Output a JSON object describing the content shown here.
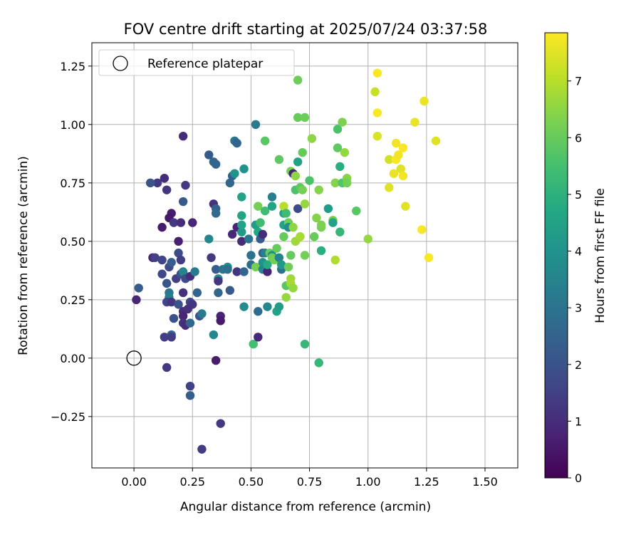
{
  "chart_data": {
    "type": "scatter",
    "title": "FOV centre drift starting at 2025/07/24 03:37:58",
    "xlabel": "Angular distance from reference (arcmin)",
    "ylabel": "Rotation from reference (arcmin)",
    "xlim": [
      -0.18,
      1.64
    ],
    "ylim": [
      -0.47,
      1.35
    ],
    "x_ticks": [
      0.0,
      0.25,
      0.5,
      0.75,
      1.0,
      1.25,
      1.5
    ],
    "x_tick_labels": [
      "0.00",
      "0.25",
      "0.50",
      "0.75",
      "1.00",
      "1.25",
      "1.50"
    ],
    "y_ticks": [
      -0.25,
      0.0,
      0.25,
      0.5,
      0.75,
      1.0,
      1.25
    ],
    "y_tick_labels": [
      "−0.25",
      "0.00",
      "0.25",
      "0.50",
      "0.75",
      "1.00",
      "1.25"
    ],
    "grid": true,
    "legend": {
      "placement": "top-left",
      "entries": [
        {
          "label": "Reference platepar",
          "marker": "open-circle"
        }
      ]
    },
    "reference_point": {
      "x": 0.0,
      "y": 0.0
    },
    "colorbar": {
      "label": "Hours from first FF file",
      "colormap": "viridis",
      "range": [
        0,
        7.85
      ],
      "ticks": [
        0,
        1,
        2,
        3,
        4,
        5,
        6,
        7
      ],
      "tick_labels": [
        "0",
        "1",
        "2",
        "3",
        "4",
        "5",
        "6",
        "7"
      ]
    },
    "points": [
      {
        "x": 0.16,
        "y": 0.62,
        "h": 0.6
      },
      {
        "x": 0.13,
        "y": 0.77,
        "h": 1.0
      },
      {
        "x": 0.21,
        "y": 0.95,
        "h": 1.0
      },
      {
        "x": 0.1,
        "y": 0.75,
        "h": 1.3
      },
      {
        "x": 0.14,
        "y": 0.72,
        "h": 1.2
      },
      {
        "x": 0.07,
        "y": 0.75,
        "h": 2.0
      },
      {
        "x": 0.22,
        "y": 0.74,
        "h": 1.3
      },
      {
        "x": 0.15,
        "y": 0.6,
        "h": 0.5
      },
      {
        "x": 0.12,
        "y": 0.56,
        "h": 0.6
      },
      {
        "x": 0.17,
        "y": 0.58,
        "h": 1.3
      },
      {
        "x": 0.2,
        "y": 0.58,
        "h": 1.0
      },
      {
        "x": 0.21,
        "y": 0.67,
        "h": 2.2
      },
      {
        "x": 0.25,
        "y": 0.58,
        "h": 0.8
      },
      {
        "x": 0.08,
        "y": 0.43,
        "h": 0.8
      },
      {
        "x": 0.09,
        "y": 0.43,
        "h": 1.5
      },
      {
        "x": 0.12,
        "y": 0.42,
        "h": 1.6
      },
      {
        "x": 0.15,
        "y": 0.39,
        "h": 1.8
      },
      {
        "x": 0.16,
        "y": 0.41,
        "h": 2.3
      },
      {
        "x": 0.12,
        "y": 0.36,
        "h": 1.7
      },
      {
        "x": 0.19,
        "y": 0.5,
        "h": 0.7
      },
      {
        "x": 0.19,
        "y": 0.45,
        "h": 1.8
      },
      {
        "x": 0.2,
        "y": 0.42,
        "h": 1.4
      },
      {
        "x": 0.18,
        "y": 0.34,
        "h": 1.5
      },
      {
        "x": 0.2,
        "y": 0.36,
        "h": 2.0
      },
      {
        "x": 0.21,
        "y": 0.37,
        "h": 3.5
      },
      {
        "x": 0.22,
        "y": 0.34,
        "h": 1.8
      },
      {
        "x": 0.24,
        "y": 0.35,
        "h": 1.0
      },
      {
        "x": 0.26,
        "y": 0.37,
        "h": 3.2
      },
      {
        "x": 0.14,
        "y": 0.32,
        "h": 2.1
      },
      {
        "x": 0.15,
        "y": 0.28,
        "h": 3.1
      },
      {
        "x": 0.15,
        "y": 0.26,
        "h": 3.3
      },
      {
        "x": 0.14,
        "y": 0.24,
        "h": 1.6
      },
      {
        "x": 0.16,
        "y": 0.24,
        "h": 1.2
      },
      {
        "x": 0.19,
        "y": 0.23,
        "h": 2.0
      },
      {
        "x": 0.21,
        "y": 0.28,
        "h": 1.1
      },
      {
        "x": 0.24,
        "y": 0.24,
        "h": 1.6
      },
      {
        "x": 0.25,
        "y": 0.23,
        "h": 1.2
      },
      {
        "x": 0.17,
        "y": 0.17,
        "h": 2.0
      },
      {
        "x": 0.21,
        "y": 0.2,
        "h": 1.0
      },
      {
        "x": 0.21,
        "y": 0.18,
        "h": 0.8
      },
      {
        "x": 0.23,
        "y": 0.21,
        "h": 1.1
      },
      {
        "x": 0.21,
        "y": 0.15,
        "h": 1.1
      },
      {
        "x": 0.22,
        "y": 0.14,
        "h": 1.0
      },
      {
        "x": 0.24,
        "y": 0.15,
        "h": 2.6
      },
      {
        "x": 0.13,
        "y": 0.09,
        "h": 1.4
      },
      {
        "x": 0.16,
        "y": 0.1,
        "h": 2.5
      },
      {
        "x": 0.16,
        "y": 0.09,
        "h": 1.4
      },
      {
        "x": 0.02,
        "y": 0.3,
        "h": 2.3
      },
      {
        "x": 0.01,
        "y": 0.25,
        "h": 0.8
      },
      {
        "x": 0.14,
        "y": -0.04,
        "h": 1.3
      },
      {
        "x": 0.24,
        "y": -0.12,
        "h": 1.5
      },
      {
        "x": 0.24,
        "y": -0.16,
        "h": 2.3
      },
      {
        "x": 0.35,
        "y": -0.01,
        "h": 0.6
      },
      {
        "x": 0.37,
        "y": -0.28,
        "h": 1.3
      },
      {
        "x": 0.29,
        "y": -0.39,
        "h": 1.4
      },
      {
        "x": 0.27,
        "y": 0.28,
        "h": 2.5
      },
      {
        "x": 0.28,
        "y": 0.18,
        "h": 2.0
      },
      {
        "x": 0.29,
        "y": 0.19,
        "h": 3.2
      },
      {
        "x": 0.37,
        "y": 0.18,
        "h": 0.8
      },
      {
        "x": 0.37,
        "y": 0.16,
        "h": 0.6
      },
      {
        "x": 0.34,
        "y": 0.1,
        "h": 3.6
      },
      {
        "x": 0.32,
        "y": 0.51,
        "h": 3.6
      },
      {
        "x": 0.33,
        "y": 0.43,
        "h": 1.3
      },
      {
        "x": 0.34,
        "y": 0.66,
        "h": 1.1
      },
      {
        "x": 0.35,
        "y": 0.64,
        "h": 2.4
      },
      {
        "x": 0.35,
        "y": 0.62,
        "h": 2.7
      },
      {
        "x": 0.34,
        "y": 0.84,
        "h": 2.6
      },
      {
        "x": 0.35,
        "y": 0.83,
        "h": 2.5
      },
      {
        "x": 0.32,
        "y": 0.87,
        "h": 2.2
      },
      {
        "x": 0.35,
        "y": 0.38,
        "h": 2.3
      },
      {
        "x": 0.36,
        "y": 0.34,
        "h": 3.8
      },
      {
        "x": 0.36,
        "y": 0.33,
        "h": 1.2
      },
      {
        "x": 0.36,
        "y": 0.28,
        "h": 2.6
      },
      {
        "x": 0.38,
        "y": 0.38,
        "h": 3.0
      },
      {
        "x": 0.4,
        "y": 0.39,
        "h": 3.8
      },
      {
        "x": 0.4,
        "y": 0.38,
        "h": 2.9
      },
      {
        "x": 0.41,
        "y": 0.29,
        "h": 2.2
      },
      {
        "x": 0.42,
        "y": 0.53,
        "h": 0.9
      },
      {
        "x": 0.41,
        "y": 0.75,
        "h": 2.6
      },
      {
        "x": 0.42,
        "y": 0.78,
        "h": 2.4
      },
      {
        "x": 0.43,
        "y": 0.79,
        "h": 4.0
      },
      {
        "x": 0.43,
        "y": 0.93,
        "h": 3.0
      },
      {
        "x": 0.44,
        "y": 0.92,
        "h": 2.5
      },
      {
        "x": 0.44,
        "y": 0.56,
        "h": 0.8
      },
      {
        "x": 0.44,
        "y": 0.37,
        "h": 1.2
      },
      {
        "x": 0.46,
        "y": 0.54,
        "h": 4.2
      },
      {
        "x": 0.46,
        "y": 0.57,
        "h": 4.5
      },
      {
        "x": 0.46,
        "y": 0.5,
        "h": 1.0
      },
      {
        "x": 0.47,
        "y": 0.81,
        "h": 4.0
      },
      {
        "x": 0.47,
        "y": 0.37,
        "h": 2.6
      },
      {
        "x": 0.47,
        "y": 0.22,
        "h": 3.8
      },
      {
        "x": 0.49,
        "y": 0.51,
        "h": 3.0
      },
      {
        "x": 0.46,
        "y": 0.69,
        "h": 4.5
      },
      {
        "x": 0.46,
        "y": 0.61,
        "h": 4.6
      },
      {
        "x": 0.5,
        "y": 0.4,
        "h": 2.8
      },
      {
        "x": 0.5,
        "y": 0.44,
        "h": 3.0
      },
      {
        "x": 0.52,
        "y": 1.0,
        "h": 3.2
      },
      {
        "x": 0.51,
        "y": 0.06,
        "h": 5.5
      },
      {
        "x": 0.53,
        "y": 0.09,
        "h": 0.9
      },
      {
        "x": 0.53,
        "y": 0.2,
        "h": 2.7
      },
      {
        "x": 0.52,
        "y": 0.39,
        "h": 6.2
      },
      {
        "x": 0.52,
        "y": 0.57,
        "h": 4.3
      },
      {
        "x": 0.53,
        "y": 0.54,
        "h": 4.7
      },
      {
        "x": 0.53,
        "y": 0.65,
        "h": 6.2
      },
      {
        "x": 0.54,
        "y": 0.58,
        "h": 5.4
      },
      {
        "x": 0.54,
        "y": 0.51,
        "h": 2.2
      },
      {
        "x": 0.55,
        "y": 0.53,
        "h": 1.0
      },
      {
        "x": 0.55,
        "y": 0.45,
        "h": 2.4
      },
      {
        "x": 0.55,
        "y": 0.41,
        "h": 4.0
      },
      {
        "x": 0.55,
        "y": 0.38,
        "h": 3.6
      },
      {
        "x": 0.56,
        "y": 0.93,
        "h": 5.8
      },
      {
        "x": 0.56,
        "y": 0.63,
        "h": 5.4
      },
      {
        "x": 0.56,
        "y": 0.45,
        "h": 3.4
      },
      {
        "x": 0.57,
        "y": 0.37,
        "h": 0.8
      },
      {
        "x": 0.57,
        "y": 0.4,
        "h": 4.8
      },
      {
        "x": 0.57,
        "y": 0.22,
        "h": 3.6
      },
      {
        "x": 0.58,
        "y": 0.45,
        "h": 6.0
      },
      {
        "x": 0.59,
        "y": 0.44,
        "h": 3.8
      },
      {
        "x": 0.59,
        "y": 0.69,
        "h": 3.3
      },
      {
        "x": 0.59,
        "y": 0.65,
        "h": 4.6
      },
      {
        "x": 0.59,
        "y": 0.43,
        "h": 6.1
      },
      {
        "x": 0.6,
        "y": 0.42,
        "h": 6.2
      },
      {
        "x": 0.61,
        "y": 0.47,
        "h": 6.0
      },
      {
        "x": 0.61,
        "y": 0.2,
        "h": 4.5
      },
      {
        "x": 0.62,
        "y": 0.22,
        "h": 4.3
      },
      {
        "x": 0.62,
        "y": 0.85,
        "h": 5.9
      },
      {
        "x": 0.62,
        "y": 0.43,
        "h": 3.5
      },
      {
        "x": 0.63,
        "y": 0.38,
        "h": 2.9
      },
      {
        "x": 0.63,
        "y": 0.4,
        "h": 4.2
      },
      {
        "x": 0.64,
        "y": 0.62,
        "h": 4.5
      },
      {
        "x": 0.64,
        "y": 0.65,
        "h": 7.0
      },
      {
        "x": 0.64,
        "y": 0.52,
        "h": 6.0
      },
      {
        "x": 0.64,
        "y": 0.57,
        "h": 4.5
      },
      {
        "x": 0.65,
        "y": 0.31,
        "h": 5.8
      },
      {
        "x": 0.65,
        "y": 0.26,
        "h": 6.6
      },
      {
        "x": 0.65,
        "y": 0.62,
        "h": 5.4
      },
      {
        "x": 0.66,
        "y": 0.39,
        "h": 6.1
      },
      {
        "x": 0.66,
        "y": 0.58,
        "h": 6.1
      },
      {
        "x": 0.66,
        "y": 0.56,
        "h": 3.8
      },
      {
        "x": 0.67,
        "y": 0.44,
        "h": 6.0
      },
      {
        "x": 0.67,
        "y": 0.34,
        "h": 6.7
      },
      {
        "x": 0.67,
        "y": 0.8,
        "h": 6.2
      },
      {
        "x": 0.67,
        "y": 0.32,
        "h": 6.8
      },
      {
        "x": 0.68,
        "y": 0.79,
        "h": 0.8
      },
      {
        "x": 0.68,
        "y": 0.56,
        "h": 6.5
      },
      {
        "x": 0.68,
        "y": 0.3,
        "h": 6.6
      },
      {
        "x": 0.69,
        "y": 0.78,
        "h": 6.5
      },
      {
        "x": 0.69,
        "y": 0.5,
        "h": 6.7
      },
      {
        "x": 0.69,
        "y": 0.72,
        "h": 5.6
      },
      {
        "x": 0.7,
        "y": 0.64,
        "h": 1.8
      },
      {
        "x": 0.7,
        "y": 1.19,
        "h": 6.1
      },
      {
        "x": 0.7,
        "y": 1.03,
        "h": 6.0
      },
      {
        "x": 0.7,
        "y": 0.84,
        "h": 4.5
      },
      {
        "x": 0.71,
        "y": 0.52,
        "h": 6.8
      },
      {
        "x": 0.71,
        "y": 0.73,
        "h": 5.9
      },
      {
        "x": 0.72,
        "y": 0.88,
        "h": 6.0
      },
      {
        "x": 0.72,
        "y": 0.72,
        "h": 6.2
      },
      {
        "x": 0.73,
        "y": 1.03,
        "h": 6.1
      },
      {
        "x": 0.73,
        "y": 0.66,
        "h": 6.6
      },
      {
        "x": 0.73,
        "y": 0.44,
        "h": 6.2
      },
      {
        "x": 0.73,
        "y": 0.06,
        "h": 5.2
      },
      {
        "x": 0.75,
        "y": 0.76,
        "h": 5.6
      },
      {
        "x": 0.76,
        "y": 0.94,
        "h": 6.5
      },
      {
        "x": 0.77,
        "y": 0.52,
        "h": 6.0
      },
      {
        "x": 0.78,
        "y": 0.6,
        "h": 6.4
      },
      {
        "x": 0.79,
        "y": 0.72,
        "h": 6.4
      },
      {
        "x": 0.79,
        "y": -0.02,
        "h": 5.2
      },
      {
        "x": 0.8,
        "y": 0.56,
        "h": 6.2
      },
      {
        "x": 0.8,
        "y": 0.46,
        "h": 4.9
      },
      {
        "x": 0.8,
        "y": 0.57,
        "h": 6.3
      },
      {
        "x": 0.83,
        "y": 0.64,
        "h": 4.3
      },
      {
        "x": 0.85,
        "y": 0.59,
        "h": 6.2
      },
      {
        "x": 0.85,
        "y": 0.58,
        "h": 4.5
      },
      {
        "x": 0.86,
        "y": 0.75,
        "h": 6.4
      },
      {
        "x": 0.86,
        "y": 0.42,
        "h": 6.9
      },
      {
        "x": 0.87,
        "y": 0.9,
        "h": 5.9
      },
      {
        "x": 0.87,
        "y": 0.98,
        "h": 5.6
      },
      {
        "x": 0.88,
        "y": 0.82,
        "h": 4.9
      },
      {
        "x": 0.88,
        "y": 0.54,
        "h": 5.2
      },
      {
        "x": 0.89,
        "y": 0.75,
        "h": 5.7
      },
      {
        "x": 0.89,
        "y": 1.01,
        "h": 6.3
      },
      {
        "x": 0.9,
        "y": 0.88,
        "h": 6.6
      },
      {
        "x": 0.91,
        "y": 0.77,
        "h": 6.4
      },
      {
        "x": 0.91,
        "y": 0.75,
        "h": 6.2
      },
      {
        "x": 0.95,
        "y": 0.63,
        "h": 5.8
      },
      {
        "x": 1.0,
        "y": 0.51,
        "h": 6.6
      },
      {
        "x": 1.03,
        "y": 1.14,
        "h": 7.2
      },
      {
        "x": 1.04,
        "y": 1.22,
        "h": 7.8
      },
      {
        "x": 1.04,
        "y": 1.05,
        "h": 7.8
      },
      {
        "x": 1.04,
        "y": 0.95,
        "h": 7.4
      },
      {
        "x": 1.09,
        "y": 0.85,
        "h": 7.3
      },
      {
        "x": 1.09,
        "y": 0.73,
        "h": 7.5
      },
      {
        "x": 1.11,
        "y": 0.79,
        "h": 7.6
      },
      {
        "x": 1.12,
        "y": 0.92,
        "h": 7.7
      },
      {
        "x": 1.12,
        "y": 0.85,
        "h": 7.8
      },
      {
        "x": 1.13,
        "y": 0.87,
        "h": 7.7
      },
      {
        "x": 1.14,
        "y": 0.81,
        "h": 7.5
      },
      {
        "x": 1.15,
        "y": 0.9,
        "h": 7.8
      },
      {
        "x": 1.15,
        "y": 0.78,
        "h": 7.7
      },
      {
        "x": 1.16,
        "y": 0.65,
        "h": 7.5
      },
      {
        "x": 1.2,
        "y": 1.01,
        "h": 7.6
      },
      {
        "x": 1.23,
        "y": 0.55,
        "h": 7.8
      },
      {
        "x": 1.24,
        "y": 1.1,
        "h": 7.6
      },
      {
        "x": 1.26,
        "y": 0.43,
        "h": 7.8
      },
      {
        "x": 1.29,
        "y": 0.93,
        "h": 7.5
      }
    ]
  }
}
